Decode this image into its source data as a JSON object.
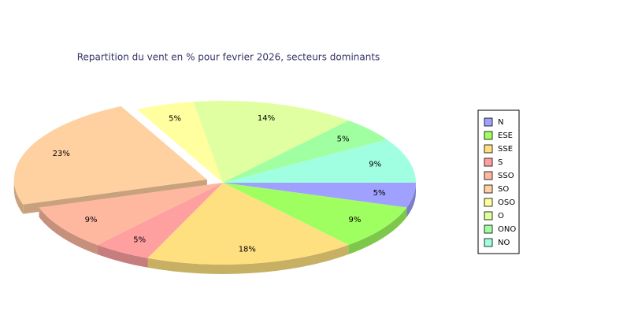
{
  "chart_data": {
    "type": "pie3d",
    "title": "Repartition du vent en % pour fevrier 2026, secteurs dominants",
    "categories": [
      "N",
      "ESE",
      "SSE",
      "S",
      "SSO",
      "SO",
      "OSO",
      "O",
      "ONO",
      "NO"
    ],
    "values": [
      5,
      9,
      18,
      5,
      9,
      23,
      5,
      14,
      5,
      9
    ],
    "value_labels": [
      "5%",
      "9%",
      "18%",
      "5%",
      "9%",
      "23%",
      "5%",
      "14%",
      "5%",
      "9%"
    ],
    "colors": [
      "#a0a0ff",
      "#a0ff60",
      "#ffe080",
      "#ffa0a0",
      "#ffb8a0",
      "#ffd0a0",
      "#ffffa0",
      "#e0ffa0",
      "#a0ffa0",
      "#a0ffe0"
    ],
    "exploded": "SO",
    "legend": "right"
  }
}
